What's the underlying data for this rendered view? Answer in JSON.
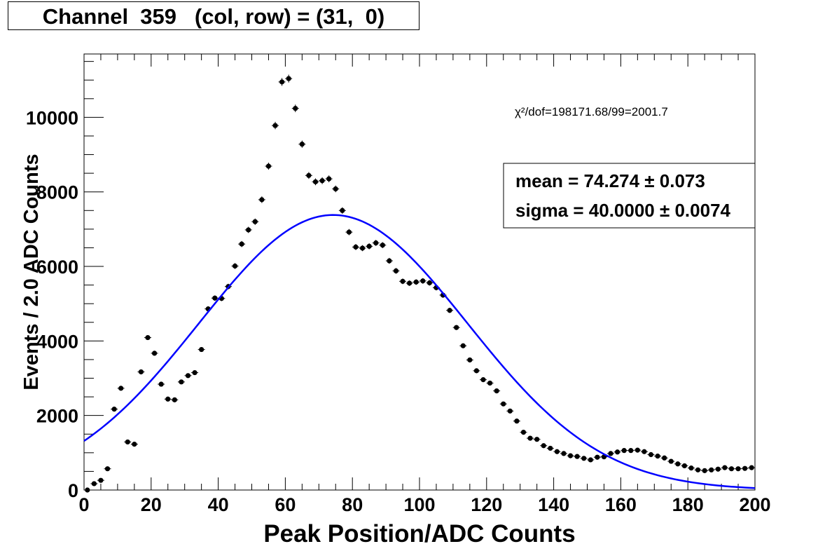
{
  "chart_data": {
    "type": "scatter",
    "title": "Channel  359   (col, row) = (31,  0)",
    "xlabel": "Peak Position/ADC Counts",
    "ylabel": "Events / 2.0 ADC Counts",
    "xlim": [
      0,
      200
    ],
    "ylim": [
      0,
      11700
    ],
    "x_ticks": [
      "0",
      "20",
      "40",
      "60",
      "80",
      "100",
      "120",
      "140",
      "160",
      "180",
      "200"
    ],
    "y_ticks": [
      "0",
      "2000",
      "4000",
      "6000",
      "8000",
      "10000"
    ],
    "grid": false,
    "series": [
      {
        "kind": "points_with_errors",
        "color": "#000000",
        "x": [
          1,
          3,
          5,
          7,
          9,
          11,
          13,
          15,
          17,
          19,
          21,
          23,
          25,
          27,
          29,
          31,
          33,
          35,
          37,
          39,
          41,
          43,
          45,
          47,
          49,
          51,
          53,
          55,
          57,
          59,
          61,
          63,
          65,
          67,
          69,
          71,
          73,
          75,
          77,
          79,
          81,
          83,
          85,
          87,
          89,
          91,
          93,
          95,
          97,
          99,
          101,
          103,
          105,
          107,
          109,
          111,
          113,
          115,
          117,
          119,
          121,
          123,
          125,
          127,
          129,
          131,
          133,
          135,
          137,
          139,
          141,
          143,
          145,
          147,
          149,
          151,
          153,
          155,
          157,
          159,
          161,
          163,
          165,
          167,
          169,
          171,
          173,
          175,
          177,
          179,
          181,
          183,
          185,
          187,
          189,
          191,
          193,
          195,
          197,
          199
        ],
        "y": [
          0,
          170,
          260,
          570,
          2170,
          2730,
          1290,
          1230,
          3170,
          4090,
          3670,
          2840,
          2440,
          2420,
          2900,
          3070,
          3150,
          3770,
          4860,
          5150,
          5140,
          5460,
          6010,
          6600,
          6980,
          7200,
          7790,
          8690,
          9780,
          10950,
          11040,
          10240,
          9280,
          8440,
          8270,
          8300,
          8350,
          8080,
          7500,
          6920,
          6520,
          6490,
          6540,
          6630,
          6570,
          6150,
          5880,
          5600,
          5550,
          5580,
          5610,
          5560,
          5430,
          5230,
          4820,
          4360,
          3870,
          3490,
          3200,
          2960,
          2870,
          2660,
          2310,
          2120,
          1850,
          1550,
          1390,
          1360,
          1190,
          1120,
          1030,
          980,
          920,
          900,
          850,
          810,
          880,
          890,
          980,
          1020,
          1060,
          1060,
          1070,
          1030,
          950,
          910,
          860,
          770,
          700,
          650,
          590,
          540,
          520,
          540,
          560,
          600,
          570,
          570,
          580,
          600
        ]
      },
      {
        "kind": "gaussian_fit",
        "color": "#0000ff",
        "mean": 74.274,
        "sigma": 40.0,
        "amplitude": 7380,
        "x_range": [
          0,
          200
        ]
      }
    ],
    "annotations": {
      "chi2": "χ²/dof=198171.68/99=2001.7",
      "mean_text": "mean =  74.274 ± 0.073",
      "sigma_text": "sigma =  40.0000 ± 0.0074"
    }
  }
}
